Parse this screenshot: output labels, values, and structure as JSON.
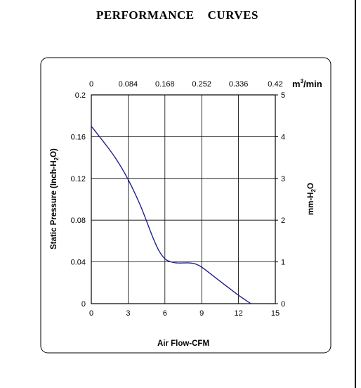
{
  "page": {
    "title": "PERFORMANCE    CURVES"
  },
  "chart_data": {
    "type": "line",
    "xlabel": "Air Flow-CFM",
    "ylabel_main": "Static Pressure (Inch-H",
    "ylabel_sub": "2",
    "ylabel_tail": "O)",
    "y2label_main": "mm-H",
    "y2label_sub": "2",
    "y2label_tail": "O",
    "x2label_main": "m",
    "x2label_sup": "3",
    "x2label_tail": "/min",
    "xlim": [
      0,
      15
    ],
    "ylim": [
      0,
      0.2
    ],
    "y2lim": [
      0,
      5
    ],
    "x2lim": [
      0,
      0.42
    ],
    "x_ticks": [
      "0",
      "3",
      "6",
      "9",
      "12",
      "15"
    ],
    "y_ticks": [
      "0",
      "0.04",
      "0.08",
      "0.12",
      "0.16",
      "0.2"
    ],
    "y2_ticks": [
      "0",
      "1",
      "2",
      "3",
      "4",
      "5"
    ],
    "x2_ticks": [
      "0",
      "0.084",
      "0.168",
      "0.252",
      "0.336",
      "0.42"
    ],
    "grid": true,
    "series": [
      {
        "color": "#1f1f8f",
        "x": [
          0,
          1,
          2,
          3,
          4,
          5,
          5.5,
          6,
          6.5,
          7,
          7.5,
          8,
          8.5,
          9,
          10,
          11,
          12,
          13
        ],
        "y": [
          0.17,
          0.155,
          0.139,
          0.119,
          0.094,
          0.064,
          0.051,
          0.043,
          0.04,
          0.039,
          0.039,
          0.039,
          0.038,
          0.035,
          0.026,
          0.017,
          0.008,
          0.0
        ]
      }
    ]
  }
}
